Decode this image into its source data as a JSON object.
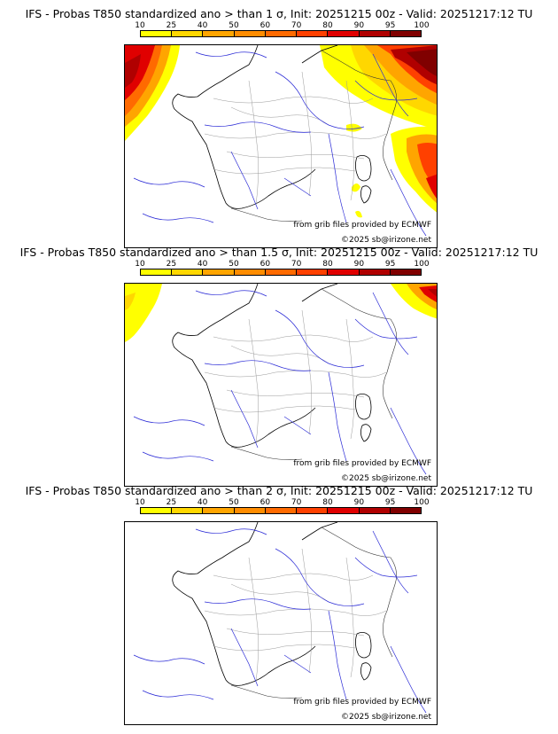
{
  "colorbar": {
    "labels": [
      "10",
      "25",
      "40",
      "50",
      "60",
      "70",
      "80",
      "90",
      "95",
      "100"
    ],
    "colors": [
      "#ffff00",
      "#ffd700",
      "#ffa500",
      "#ff8c00",
      "#ff6a00",
      "#ff4000",
      "#e00000",
      "#b00000",
      "#800000"
    ]
  },
  "credits": {
    "source": "from grib files provided by ECMWF",
    "copyright": "©2025 sb@irizone.net"
  },
  "panels": [
    {
      "title": "IFS - Probas T850  standardized ano > than 1 σ, Init: 20251215 00z - Valid: 20251217:12 TU",
      "coverage": "high"
    },
    {
      "title": "IFS - Probas T850  standardized ano > than 1.5 σ, Init: 20251215 00z - Valid: 20251217:12 TU",
      "coverage": "medium"
    },
    {
      "title": "IFS - Probas T850  standardized ano > than 2 σ, Init: 20251215 00z - Valid: 20251217:12 TU",
      "coverage": "none"
    }
  ]
}
